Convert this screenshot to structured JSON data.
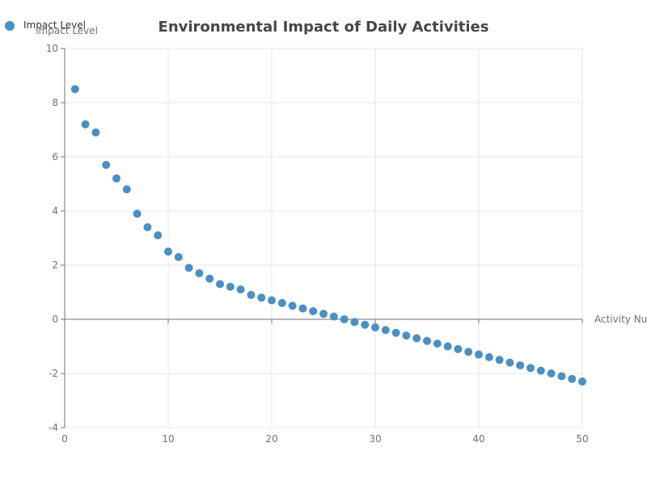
{
  "chart_data": {
    "type": "scatter",
    "title": "Environmental Impact of Daily Activities",
    "xlabel": "Activity Number",
    "ylabel": "Impact Level",
    "xlim": [
      0,
      50
    ],
    "ylim": [
      -4,
      10
    ],
    "x_ticks": [
      0,
      10,
      20,
      30,
      40,
      50
    ],
    "y_ticks": [
      -4,
      -2,
      0,
      2,
      4,
      6,
      8,
      10
    ],
    "grid": true,
    "legend_placement": "top-left",
    "series": [
      {
        "name": "Impact Level",
        "color": "#4a90c2",
        "x": [
          1,
          2,
          3,
          4,
          5,
          6,
          7,
          8,
          9,
          10,
          11,
          12,
          13,
          14,
          15,
          16,
          17,
          18,
          19,
          20,
          21,
          22,
          23,
          24,
          25,
          26,
          27,
          28,
          29,
          30,
          31,
          32,
          33,
          34,
          35,
          36,
          37,
          38,
          39,
          40,
          41,
          42,
          43,
          44,
          45,
          46,
          47,
          48,
          49,
          50
        ],
        "y": [
          8.5,
          7.2,
          6.9,
          5.7,
          5.2,
          4.8,
          3.9,
          3.4,
          3.1,
          2.5,
          2.3,
          1.9,
          1.7,
          1.5,
          1.3,
          1.2,
          1.1,
          0.9,
          0.8,
          0.7,
          0.6,
          0.5,
          0.4,
          0.3,
          0.2,
          0.1,
          0.0,
          -0.1,
          -0.2,
          -0.3,
          -0.4,
          -0.5,
          -0.6,
          -0.7,
          -0.8,
          -0.9,
          -1.0,
          -1.1,
          -1.2,
          -1.3,
          -1.4,
          -1.5,
          -1.6,
          -1.7,
          -1.8,
          -1.9,
          -2.0,
          -2.1,
          -2.2,
          -2.3
        ]
      }
    ]
  }
}
